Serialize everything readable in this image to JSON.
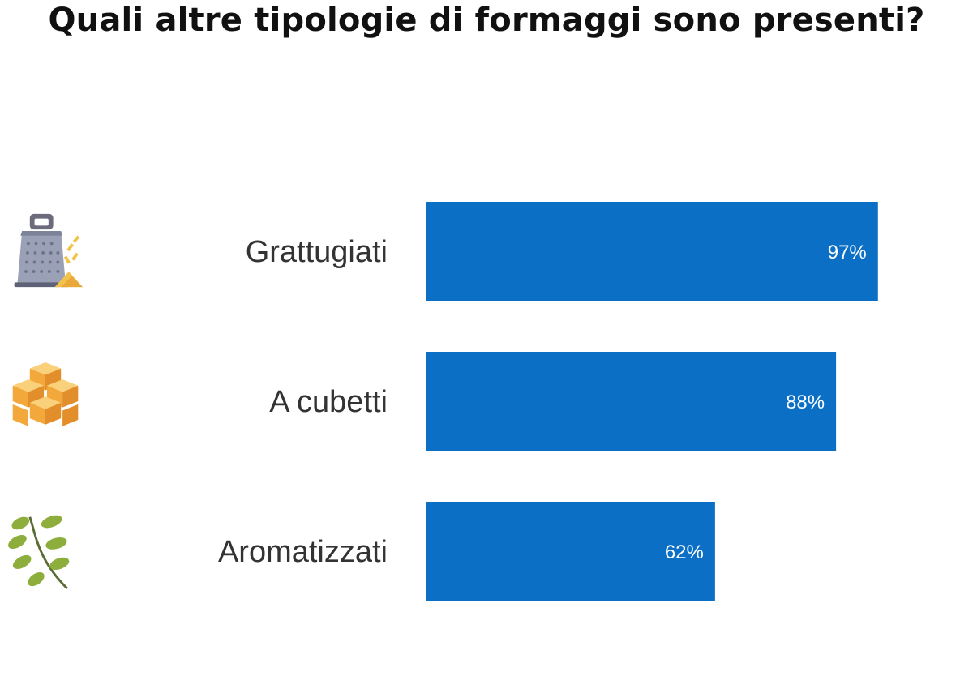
{
  "colors": {
    "bar": "#0b6fc6",
    "title": "#111111",
    "label": "#333333",
    "value_label": "#ffffff"
  },
  "chart_data": {
    "type": "bar",
    "orientation": "horizontal",
    "title": "Quali altre tipologie di formaggi sono presenti?",
    "categories": [
      "Grattugiati",
      "A cubetti",
      "Aromatizzati"
    ],
    "values": [
      97,
      88,
      62
    ],
    "value_labels": [
      "97%",
      "88%",
      "62%"
    ],
    "icons": [
      "cheese-grater-icon",
      "cheese-cubes-icon",
      "herb-sprig-icon"
    ],
    "xlim": [
      0,
      100
    ],
    "grid": false,
    "legend": "none"
  }
}
